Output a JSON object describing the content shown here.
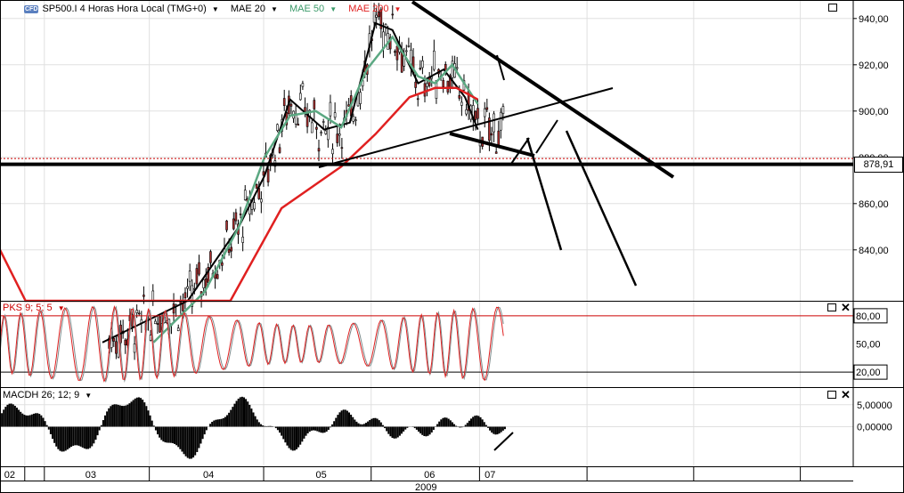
{
  "header": {
    "badge": "CFD",
    "instrument": "SP500.I 4 Horas Hora Local (TMG+0)",
    "indicators": [
      {
        "label": "MAE 20",
        "color": "#000000"
      },
      {
        "label": "MAE 50",
        "color": "#5ba882"
      },
      {
        "label": "MAE 200",
        "color": "#e02020"
      }
    ]
  },
  "panels": {
    "stochastic": {
      "label": "PKS 9; 5; 5",
      "color": "#cc0000"
    },
    "macd": {
      "label": "MACDH 26; 12; 9"
    }
  },
  "current_price": "878,91",
  "chart_data": [
    {
      "type": "candlestick",
      "panel": "price",
      "y_ticks": [
        "940,00",
        "920,00",
        "900,00",
        "880,00",
        "860,00",
        "840,00"
      ],
      "ylim": [
        818,
        948
      ],
      "x_ticks": [
        "02",
        "03",
        "04",
        "05",
        "06",
        "07"
      ],
      "x_group_label": "2009",
      "current_price": 878.91,
      "series": [
        {
          "name": "MAE 20",
          "approx_path": [
            [
              0.12,
              800
            ],
            [
              0.22,
              818
            ],
            [
              0.28,
              850
            ],
            [
              0.31,
              872
            ],
            [
              0.34,
              905
            ],
            [
              0.38,
              892
            ],
            [
              0.41,
              895
            ],
            [
              0.44,
              938
            ],
            [
              0.46,
              935
            ],
            [
              0.49,
              912
            ],
            [
              0.52,
              918
            ],
            [
              0.545,
              906
            ],
            [
              0.56,
              892
            ]
          ]
        },
        {
          "name": "MAE 50",
          "approx_path": [
            [
              0.18,
              800
            ],
            [
              0.24,
              822
            ],
            [
              0.28,
              850
            ],
            [
              0.31,
              880
            ],
            [
              0.34,
              898
            ],
            [
              0.37,
              900
            ],
            [
              0.4,
              893
            ],
            [
              0.43,
              918
            ],
            [
              0.46,
              932
            ],
            [
              0.49,
              915
            ],
            [
              0.51,
              912
            ],
            [
              0.53,
              920
            ],
            [
              0.56,
              903
            ]
          ]
        },
        {
          "name": "MAE 200",
          "approx_path": [
            [
              0.0,
              840
            ],
            [
              0.03,
              818
            ],
            [
              0.27,
              818
            ],
            [
              0.33,
              858
            ],
            [
              0.4,
              876
            ],
            [
              0.44,
              890
            ],
            [
              0.48,
              906
            ],
            [
              0.51,
              910
            ],
            [
              0.535,
              910
            ],
            [
              0.56,
              905
            ]
          ]
        }
      ],
      "horizontal_lines": [
        879.5,
        877
      ]
    },
    {
      "type": "line",
      "panel": "stochastic",
      "y_ticks": [
        "80,00",
        "50,00",
        "20,00"
      ],
      "ylim": [
        4,
        96
      ],
      "levels": [
        80,
        20
      ]
    },
    {
      "type": "bar",
      "panel": "macd_histogram",
      "y_ticks": [
        "5,00000",
        "0,00000"
      ],
      "ylim": [
        -9,
        9
      ]
    }
  ]
}
